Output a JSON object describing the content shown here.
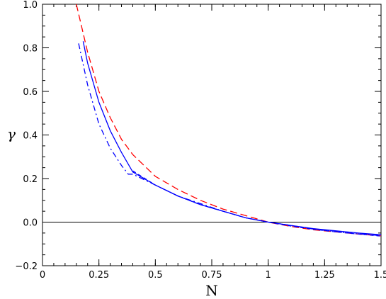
{
  "chart_data": {
    "type": "line",
    "xlabel": "N",
    "ylabel": "γ",
    "xlim": [
      0,
      1.5
    ],
    "ylim": [
      -0.2,
      1.0
    ],
    "grid": false,
    "xticks": [
      {
        "v": 0,
        "label": "0"
      },
      {
        "v": 0.25,
        "label": "0.25"
      },
      {
        "v": 0.5,
        "label": "0.5"
      },
      {
        "v": 0.75,
        "label": "0.75"
      },
      {
        "v": 1.0,
        "label": "1"
      },
      {
        "v": 1.25,
        "label": "1.25"
      },
      {
        "v": 1.5,
        "label": "1.5"
      }
    ],
    "yticks": [
      {
        "v": -0.2,
        "label": "−0.2"
      },
      {
        "v": 0.0,
        "label": "0.0"
      },
      {
        "v": 0.2,
        "label": "0.2"
      },
      {
        "v": 0.4,
        "label": "0.4"
      },
      {
        "v": 0.6,
        "label": "0.6"
      },
      {
        "v": 0.8,
        "label": "0.8"
      },
      {
        "v": 1.0,
        "label": "1.0"
      }
    ],
    "reference_line": {
      "y": 0.0,
      "color": "#000000"
    },
    "series": [
      {
        "color": "#ff0000",
        "dash": "long-dash",
        "x": [
          0.15,
          0.2,
          0.25,
          0.3,
          0.35,
          0.4,
          0.5,
          0.6,
          0.7,
          0.8,
          0.9,
          1.0,
          1.1,
          1.2,
          1.3,
          1.4,
          1.5
        ],
        "y": [
          1.0,
          0.78,
          0.6,
          0.48,
          0.38,
          0.31,
          0.21,
          0.15,
          0.1,
          0.06,
          0.03,
          0.0,
          -0.02,
          -0.035,
          -0.045,
          -0.055,
          -0.063
        ]
      },
      {
        "color": "#0000ff",
        "dash": "solid",
        "x": [
          0.18,
          0.2,
          0.25,
          0.3,
          0.35,
          0.4,
          0.5,
          0.6,
          0.7,
          0.8,
          0.9,
          1.0,
          1.1,
          1.2,
          1.3,
          1.4,
          1.5
        ],
        "y": [
          0.83,
          0.73,
          0.55,
          0.42,
          0.32,
          0.23,
          0.17,
          0.12,
          0.08,
          0.05,
          0.02,
          0.0,
          -0.015,
          -0.03,
          -0.04,
          -0.05,
          -0.058
        ]
      },
      {
        "color": "#0000ff",
        "dash": "dash-dot",
        "x": [
          0.16,
          0.2,
          0.25,
          0.3,
          0.35,
          0.38,
          0.4,
          0.5,
          0.6,
          0.7,
          0.8,
          0.9,
          1.0,
          1.1,
          1.2,
          1.3,
          1.4,
          1.5
        ],
        "y": [
          0.82,
          0.63,
          0.45,
          0.34,
          0.26,
          0.22,
          0.22,
          0.17,
          0.12,
          0.085,
          0.05,
          0.02,
          0.0,
          -0.015,
          -0.032,
          -0.044,
          -0.054,
          -0.062
        ]
      },
      {
        "color": "#0000ff",
        "dash": "short-dash",
        "x": [
          0.4,
          0.5,
          0.6,
          0.7,
          0.8,
          0.9,
          1.0,
          1.1,
          1.2,
          1.3,
          1.4,
          1.5
        ],
        "y": [
          0.235,
          0.17,
          0.12,
          0.08,
          0.05,
          0.02,
          0.0,
          -0.018,
          -0.033,
          -0.045,
          -0.055,
          -0.064
        ]
      }
    ]
  }
}
